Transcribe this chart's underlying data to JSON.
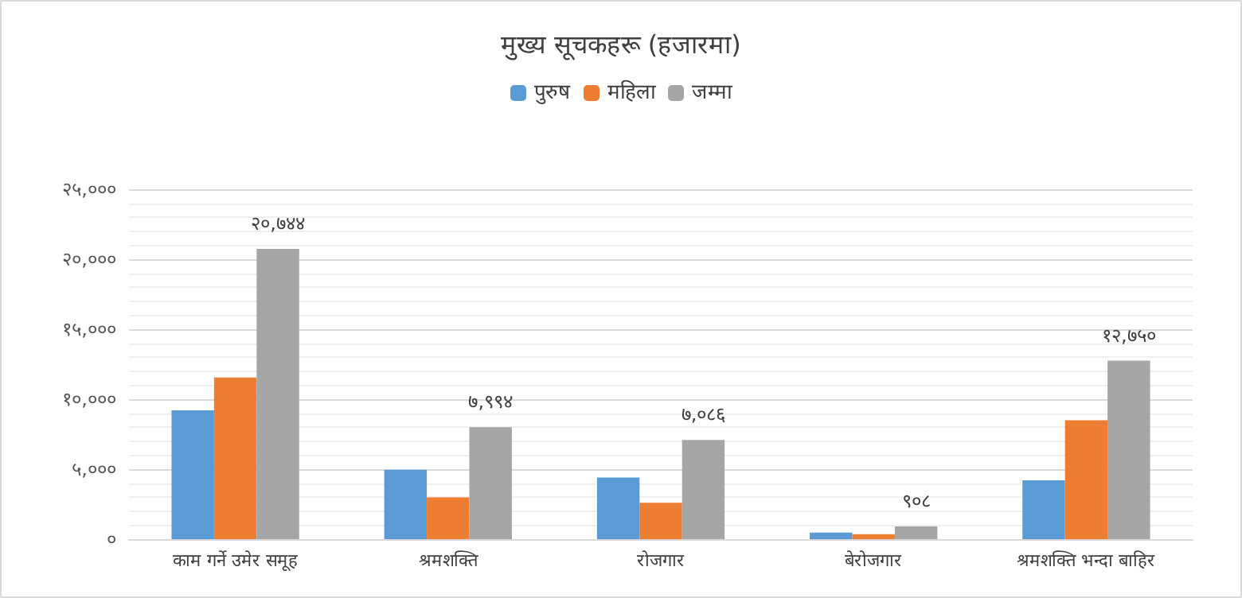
{
  "chart_data": {
    "type": "bar",
    "title": "मुख्य सूचकहरू (हजारमा)",
    "categories": [
      "काम गर्ने उमेर समूह",
      "श्रमशक्ति",
      "रोजगार",
      "बेरोजगार",
      "श्रमशक्ति भन्दा बाहिर"
    ],
    "series": [
      {
        "name": "पुरुष",
        "color": "#5b9bd5",
        "values": [
          9200,
          4960,
          4410,
          470,
          4210
        ]
      },
      {
        "name": "महिला",
        "color": "#ed7d31",
        "values": [
          11550,
          2990,
          2600,
          350,
          8500
        ]
      },
      {
        "name": "जम्मा",
        "color": "#a5a5a5",
        "values": [
          20744,
          7994,
          7086,
          908,
          12750
        ],
        "value_labels": [
          "२०,७४४",
          "७,९९४",
          "७,०८६",
          "९०८",
          "१२,७५०"
        ]
      }
    ],
    "ylim": [
      0,
      25000
    ],
    "yticks": [
      {
        "value": 0,
        "label": "०"
      },
      {
        "value": 5000,
        "label": "५,०००"
      },
      {
        "value": 10000,
        "label": "१०,०००"
      },
      {
        "value": 15000,
        "label": "१५,०००"
      },
      {
        "value": 20000,
        "label": "२०,०००"
      },
      {
        "value": 25000,
        "label": "२५,०००"
      }
    ],
    "grid": "y",
    "legend": "top"
  }
}
